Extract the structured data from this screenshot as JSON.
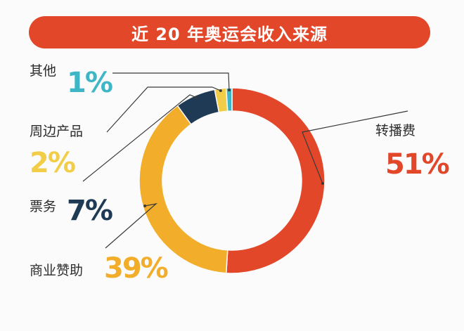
{
  "chart_data": {
    "type": "pie",
    "title": "近 20 年奥运会收入来源",
    "categories": [
      "转播费",
      "商业赞助",
      "票务",
      "周边产品",
      "其他"
    ],
    "values": [
      51,
      39,
      7,
      2,
      1
    ],
    "value_labels": [
      "51%",
      "39%",
      "7%",
      "2%",
      "1%"
    ],
    "colors": [
      "#e2472a",
      "#f2ae2b",
      "#1f3a55",
      "#f2cd47",
      "#3fb6c6"
    ],
    "legend": "none"
  }
}
